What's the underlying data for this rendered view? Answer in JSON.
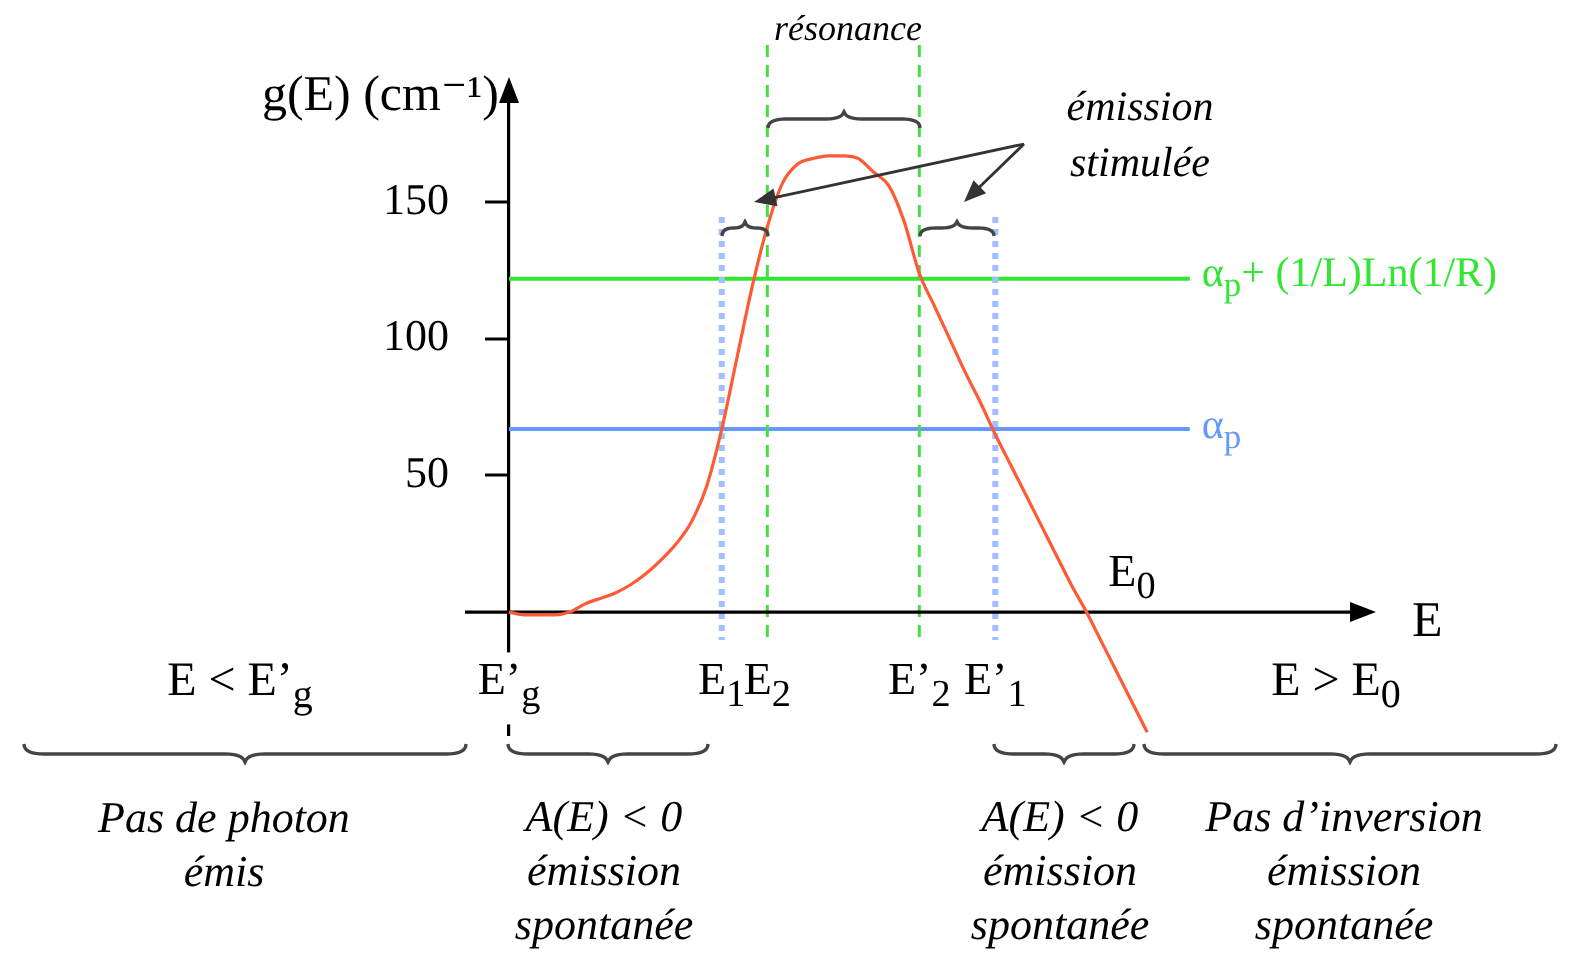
{
  "chart_data": {
    "type": "line",
    "xlabel": "E",
    "ylabel": "g(E) (cm⁻¹)",
    "categories": [
      "E’$_{g}$",
      null,
      null,
      null,
      null,
      null,
      null,
      null,
      null,
      null,
      null,
      null,
      null,
      null,
      "E$_{1}$",
      null,
      null,
      "E$_{2}$",
      null,
      null,
      null,
      null,
      null,
      null,
      null,
      null,
      null,
      "E’$_{2}$",
      null,
      null,
      null,
      null,
      "E’$_{1}$",
      null,
      null,
      null,
      null,
      null,
      null,
      null,
      null,
      null,
      null,
      null,
      null,
      null,
      null,
      null,
      null,
      null,
      null,
      null,
      null,
      null,
      null,
      null,
      null
    ],
    "series": [
      {
        "color": "#ff5a36",
        "values": [
          0,
          -1,
          -1,
          -1,
          0,
          3,
          5,
          7,
          10,
          14,
          19,
          25,
          33,
          46,
          67,
          93,
          119,
          141,
          157,
          164,
          166,
          167,
          167,
          166,
          161,
          156,
          143,
          124,
          112,
          100,
          88,
          77,
          65,
          54,
          43,
          32,
          21,
          10,
          0,
          -11,
          -22,
          -33,
          -44,
          null,
          null,
          null,
          null,
          null,
          null,
          null,
          null,
          null,
          null,
          null,
          null,
          null,
          null
        ]
      }
    ],
    "ylim": [
      -45,
      190
    ],
    "yticks": [
      50,
      100,
      150
    ],
    "marker": "none",
    "grid": false,
    "legend": false,
    "ref_lines": [
      {
        "axis": "y",
        "value": 122,
        "label": "α$_{p}$+ (1/L)Ln(1/R)",
        "color": "#33e633"
      },
      {
        "axis": "y",
        "value": 67,
        "label": "α$_{p}$",
        "color": "#6699ff"
      },
      {
        "axis": "x",
        "value": "E$_{1}$",
        "color": "#9fbfff",
        "line_style": "dotted"
      },
      {
        "axis": "x",
        "value": "E$_{2}$",
        "color": "#44dd44",
        "line_style": "dashed"
      },
      {
        "axis": "x",
        "value": "E’$_{2}$",
        "color": "#44dd44",
        "line_style": "dashed"
      },
      {
        "axis": "x",
        "value": "E’$_{1}$",
        "color": "#9fbfff",
        "line_style": "dotted"
      }
    ],
    "annotations": [
      "résonance",
      "émission\nstimulée",
      "E < E’$_{g}$",
      "E > E$_{0}$",
      "Pas de photon\némis",
      "A(E) < 0\némission\nspontanée",
      "A(E) < 0\némission\nspontanée",
      "Pas d’inversion\némission\nspontanée",
      "E$_{0}$"
    ]
  }
}
